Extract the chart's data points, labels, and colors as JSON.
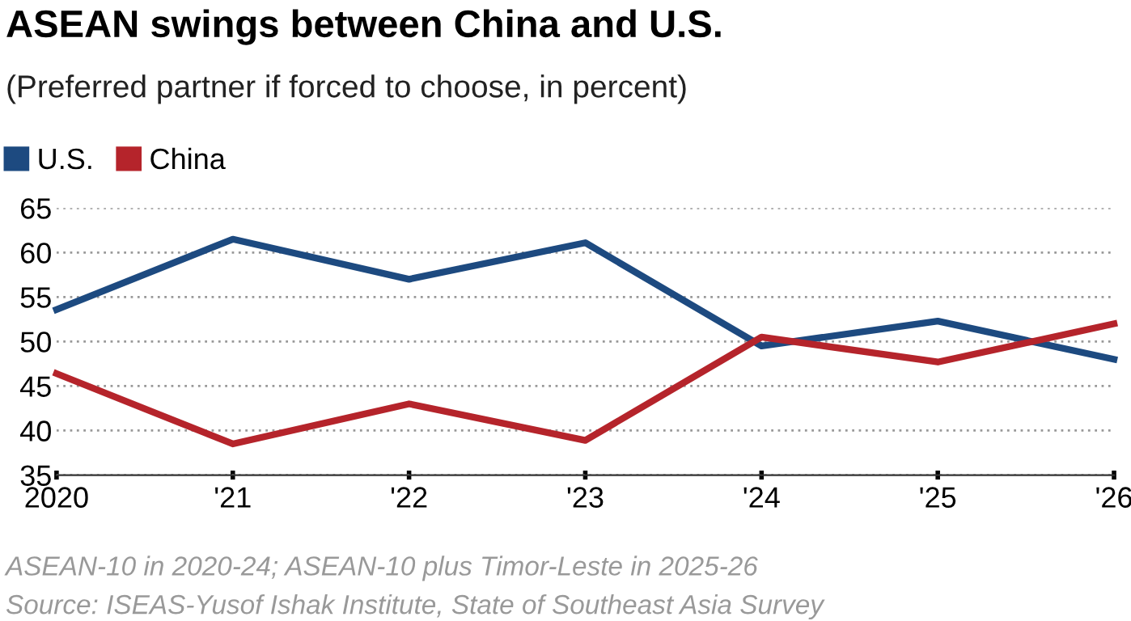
{
  "chart_data": {
    "type": "line",
    "title": "ASEAN swings between China and U.S.",
    "subtitle": "(Preferred partner if forced to choose, in percent)",
    "x": [
      2020,
      2021,
      2022,
      2023,
      2024,
      2025,
      2026
    ],
    "series": [
      {
        "name": "U.S.",
        "color": "#1d4a80",
        "values": [
          53.6,
          61.5,
          57.0,
          61.1,
          49.5,
          52.3,
          48.0
        ]
      },
      {
        "name": "China",
        "color": "#b5242b",
        "values": [
          46.4,
          38.5,
          43.0,
          38.9,
          50.5,
          47.7,
          52.0
        ]
      }
    ],
    "xlim": [
      2020,
      2026
    ],
    "xticks": [
      2020,
      {
        "value": 2021,
        "label": "'21"
      },
      {
        "value": 2022,
        "label": "'22"
      },
      {
        "value": 2023,
        "label": "'23"
      },
      {
        "value": 2024,
        "label": "'24"
      },
      {
        "value": 2025,
        "label": "'25"
      },
      {
        "value": 2026,
        "label": "'26"
      }
    ],
    "ylim": [
      35,
      65
    ],
    "yticks": [
      35,
      40,
      45,
      50,
      55,
      60,
      65
    ],
    "grid": "y",
    "legend": "top left",
    "marker": "none",
    "line_style": "solid",
    "annotations": [
      "ASEAN-10 in 2020-24; ASEAN-10 plus Timor-Leste in 2025-26",
      "Source: ISEAS-Yusof Ishak Institute, State of Southeast Asia Survey"
    ]
  }
}
